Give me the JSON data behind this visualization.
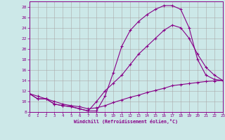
{
  "xlabel": "Windchill (Refroidissement éolien,°C)",
  "bg_color": "#cce8e8",
  "line_color": "#880088",
  "grid_color": "#aaaaaa",
  "spine_color": "#880088",
  "xmin": 0,
  "xmax": 23,
  "ymin": 8,
  "ymax": 29,
  "curve1_x": [
    0,
    1,
    2,
    3,
    4,
    5,
    6,
    7,
    8,
    9,
    10,
    11,
    12,
    13,
    14,
    15,
    16,
    17,
    18,
    19,
    20,
    21,
    22,
    23
  ],
  "curve1_y": [
    11.5,
    10.5,
    10.5,
    9.5,
    9.2,
    9.0,
    8.6,
    8.2,
    8.2,
    11.0,
    15.5,
    20.5,
    23.5,
    25.2,
    26.5,
    27.5,
    28.2,
    28.2,
    27.5,
    24.0,
    18.0,
    15.0,
    14.2,
    14.0
  ],
  "curve2_x": [
    0,
    1,
    2,
    3,
    4,
    5,
    6,
    7,
    8,
    9,
    10,
    11,
    12,
    13,
    14,
    15,
    16,
    17,
    18,
    19,
    20,
    21,
    22,
    23
  ],
  "curve2_y": [
    11.5,
    10.5,
    10.5,
    9.5,
    9.2,
    9.0,
    8.6,
    8.2,
    10.0,
    12.0,
    13.5,
    15.0,
    17.0,
    19.0,
    20.5,
    22.0,
    23.5,
    24.5,
    24.0,
    22.0,
    19.0,
    16.5,
    15.0,
    14.0
  ],
  "curve3_x": [
    0,
    1,
    2,
    3,
    4,
    5,
    6,
    7,
    8,
    9,
    10,
    11,
    12,
    13,
    14,
    15,
    16,
    17,
    18,
    19,
    20,
    21,
    22,
    23
  ],
  "curve3_y": [
    11.5,
    11.0,
    10.5,
    10.0,
    9.5,
    9.2,
    9.0,
    8.6,
    8.8,
    9.2,
    9.8,
    10.3,
    10.8,
    11.2,
    11.7,
    12.1,
    12.5,
    13.0,
    13.2,
    13.4,
    13.6,
    13.8,
    13.9,
    14.0
  ],
  "xticks": [
    0,
    1,
    2,
    3,
    4,
    5,
    6,
    7,
    8,
    9,
    10,
    11,
    12,
    13,
    14,
    15,
    16,
    17,
    18,
    19,
    20,
    21,
    22,
    23
  ],
  "yticks": [
    8,
    10,
    12,
    14,
    16,
    18,
    20,
    22,
    24,
    26,
    28
  ]
}
